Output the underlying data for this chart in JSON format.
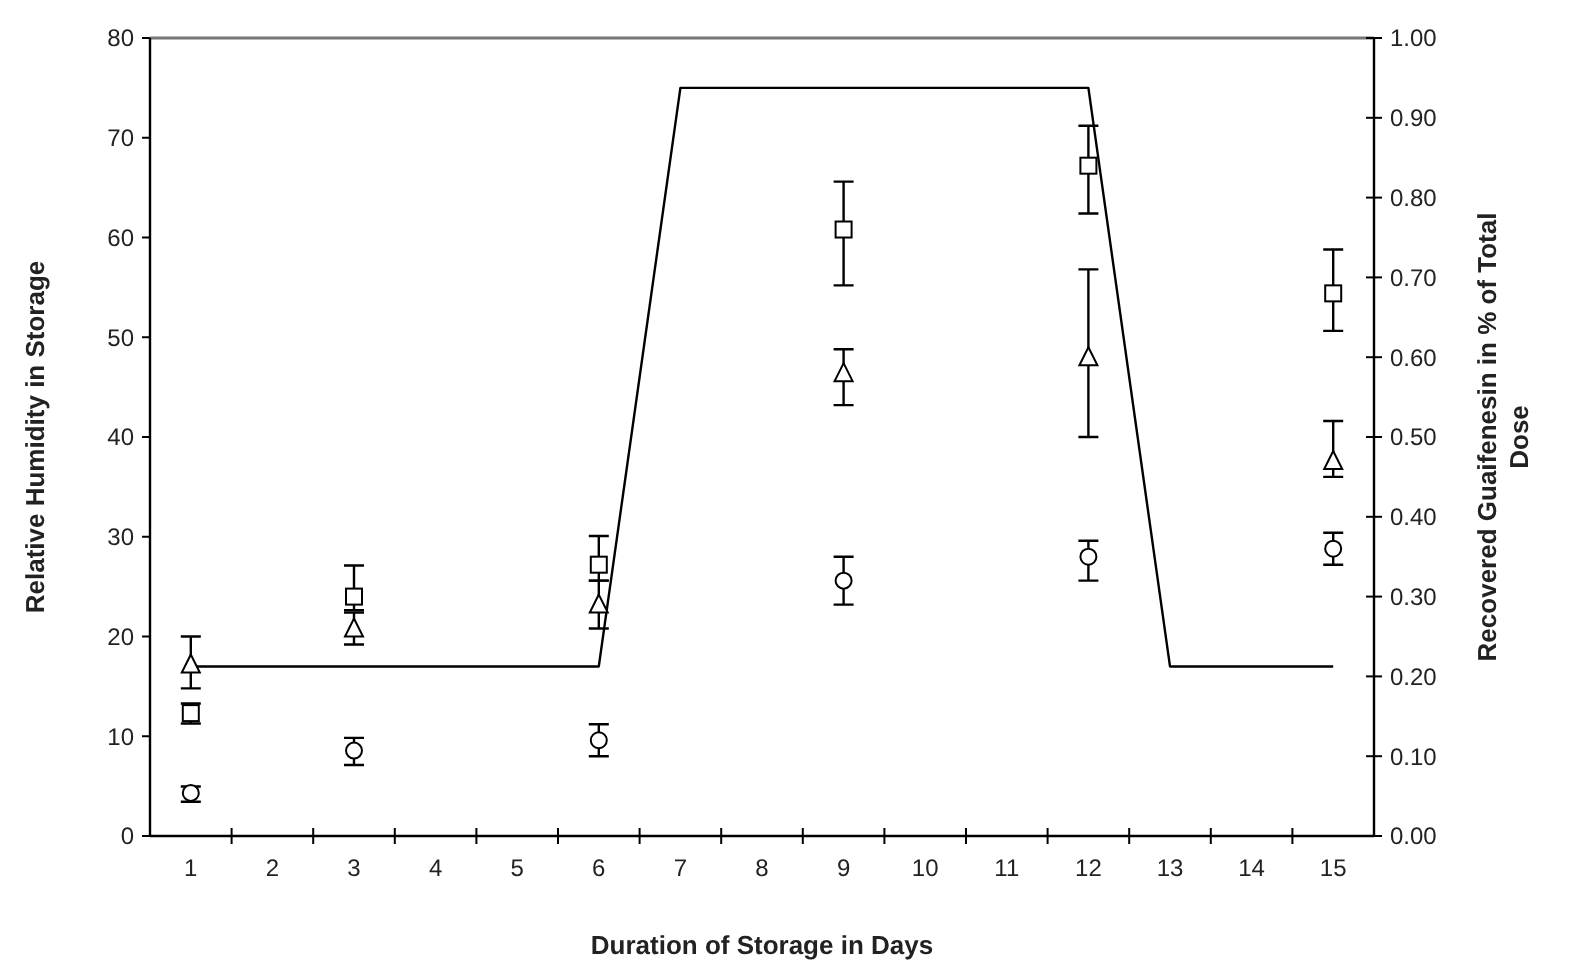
{
  "chart_data": {
    "type": "scatter",
    "xlabel": "Duration of Storage in Days",
    "ylabel": "Relative Humidity in Storage",
    "y2label": "Recovered Guaifenesin in % of Total Dose",
    "xlim": [
      0.5,
      15.5
    ],
    "xticks": [
      1,
      2,
      3,
      4,
      5,
      6,
      7,
      8,
      9,
      10,
      11,
      12,
      13,
      14,
      15,
      {
        "value": 1.5,
        "label": null
      },
      {
        "value": 2.5,
        "label": null
      },
      {
        "value": 3.5,
        "label": null
      },
      {
        "value": 4.5,
        "label": null
      },
      {
        "value": 5.5,
        "label": null
      },
      {
        "value": 6.5,
        "label": null
      },
      {
        "value": 7.5,
        "label": null
      },
      {
        "value": 8.5,
        "label": null
      },
      {
        "value": 9.5,
        "label": null
      },
      {
        "value": 10.5,
        "label": null
      },
      {
        "value": 11.5,
        "label": null
      },
      {
        "value": 12.5,
        "label": null
      },
      {
        "value": 13.5,
        "label": null
      },
      {
        "value": 14.5,
        "label": null
      }
    ],
    "ylim": [
      0,
      80
    ],
    "yticks": [
      0,
      10,
      20,
      30,
      40,
      50,
      60,
      70,
      80
    ],
    "y2lim": [
      0,
      1
    ],
    "y2ticks": [
      {
        "value": 0,
        "label": "0.00"
      },
      {
        "value": 0.1,
        "label": "0.10"
      },
      {
        "value": 0.2,
        "label": "0.20"
      },
      {
        "value": 0.3,
        "label": "0.30"
      },
      {
        "value": 0.4,
        "label": "0.40"
      },
      {
        "value": 0.5,
        "label": "0.50"
      },
      {
        "value": 0.6,
        "label": "0.60"
      },
      {
        "value": 0.7,
        "label": "0.70"
      },
      {
        "value": 0.8,
        "label": "0.80"
      },
      {
        "value": 0.9,
        "label": "0.90"
      },
      {
        "value": 1,
        "label": "1.00"
      }
    ],
    "grid": false,
    "legend": false,
    "series": [
      {
        "type": "line",
        "color": "#000000",
        "marker": "none",
        "line_style": "solid",
        "x": [
          1,
          6,
          7,
          12,
          13,
          15
        ],
        "values": [
          17,
          17,
          75,
          75,
          17,
          17
        ]
      },
      {
        "axis": "y2",
        "color": "#000000",
        "marker": "square",
        "x": [
          1,
          3,
          6,
          9,
          12,
          15
        ],
        "values": [
          0.154,
          0.3,
          0.34,
          0.76,
          0.84,
          0.68
        ],
        "errors": [
          [
            0.141,
            0.166
          ],
          [
            0.283,
            0.339
          ],
          [
            0.32,
            0.376
          ],
          [
            0.69,
            0.82
          ],
          [
            0.78,
            0.89
          ],
          [
            0.633,
            0.735
          ]
        ]
      },
      {
        "axis": "y2",
        "color": "#000000",
        "marker": "triangle",
        "x": [
          1,
          3,
          6,
          9,
          12,
          15
        ],
        "values": [
          0.215,
          0.26,
          0.29,
          0.58,
          0.6,
          0.47
        ],
        "errors": [
          [
            0.185,
            0.25
          ],
          [
            0.24,
            0.28
          ],
          [
            0.26,
            0.32
          ],
          [
            0.54,
            0.61
          ],
          [
            0.5,
            0.71
          ],
          [
            0.45,
            0.52
          ]
        ]
      },
      {
        "axis": "y2",
        "color": "#000000",
        "marker": "circle",
        "x": [
          1,
          3,
          6,
          9,
          12,
          15
        ],
        "values": [
          0.054,
          0.107,
          0.12,
          0.32,
          0.35,
          0.36
        ],
        "errors": [
          [
            0.043,
            0.062
          ],
          [
            0.089,
            0.123
          ],
          [
            0.1,
            0.14
          ],
          [
            0.29,
            0.35
          ],
          [
            0.32,
            0.37
          ],
          [
            0.34,
            0.38
          ]
        ]
      }
    ]
  }
}
